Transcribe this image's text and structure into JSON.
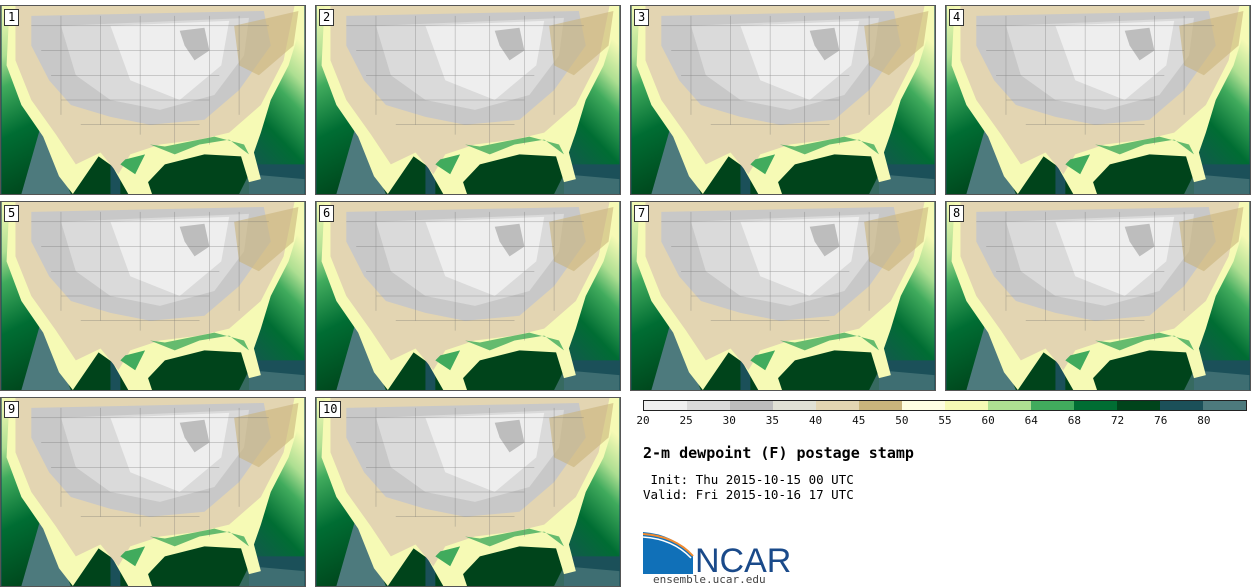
{
  "panels": [
    "1",
    "2",
    "3",
    "4",
    "5",
    "6",
    "7",
    "8",
    "9",
    "10"
  ],
  "chart_data": {
    "type": "heatmap",
    "title": "2-m dewpoint (F) postage stamp",
    "colorbar": {
      "unit": "F",
      "labels": [
        "20",
        "25",
        "30",
        "35",
        "40",
        "45",
        "50",
        "55",
        "60",
        "64",
        "68",
        "72",
        "76",
        "80"
      ],
      "colors": [
        "#f0f0f0",
        "#dadada",
        "#bdbdbd",
        "#e1e1d5",
        "#e3d5b2",
        "#c9b47c",
        "#fefee2",
        "#f6fab5",
        "#aedf92",
        "#41ab5d",
        "#006d33",
        "#00441b",
        "#1b5059",
        "#4d7a7d"
      ]
    }
  },
  "info": {
    "init": " Init: Thu 2015-10-15 00 UTC",
    "valid": "Valid: Fri 2015-10-16 17 UTC"
  },
  "logo": {
    "text": "NCAR",
    "url": "ensemble.ucar.edu"
  }
}
